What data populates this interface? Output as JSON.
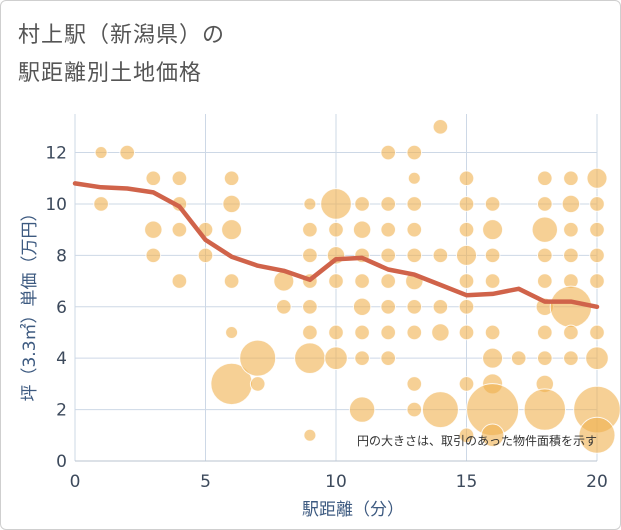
{
  "chart_data": {
    "type": "scatter",
    "title_line1": "村上駅（新潟県）の",
    "title_line2": "駅距離別土地価格",
    "xlabel": "駅距離（分）",
    "ylabel": "坪（3.3㎡）単価（万円）",
    "note": "円の大きさは、取引のあった物件面積を示す",
    "xlim": [
      0,
      20
    ],
    "ylim": [
      0,
      13.5
    ],
    "xticks": [
      0,
      5,
      10,
      15,
      20
    ],
    "yticks": [
      0,
      2,
      4,
      6,
      8,
      10,
      12
    ],
    "grid": true,
    "bubble_color": "#F0B04F",
    "line_color": "#D0634A",
    "points": [
      [
        1,
        12,
        1
      ],
      [
        1,
        10,
        2
      ],
      [
        2,
        12,
        2
      ],
      [
        3,
        11,
        2
      ],
      [
        3,
        9,
        3
      ],
      [
        3,
        8,
        2
      ],
      [
        4,
        11,
        2
      ],
      [
        4,
        10,
        2
      ],
      [
        4,
        9,
        2
      ],
      [
        4,
        7,
        2
      ],
      [
        5,
        9,
        2
      ],
      [
        5,
        8,
        2
      ],
      [
        6,
        11,
        2
      ],
      [
        6,
        10,
        3
      ],
      [
        6,
        9,
        4
      ],
      [
        6,
        7,
        2
      ],
      [
        6,
        5,
        1
      ],
      [
        6,
        3,
        12
      ],
      [
        7,
        4,
        10
      ],
      [
        7,
        3,
        2
      ],
      [
        8,
        7,
        4
      ],
      [
        8,
        6,
        2
      ],
      [
        9,
        10,
        1
      ],
      [
        9,
        9,
        2
      ],
      [
        9,
        8,
        2
      ],
      [
        9,
        7,
        2
      ],
      [
        9,
        6,
        2
      ],
      [
        9,
        5,
        2
      ],
      [
        9,
        4,
        8
      ],
      [
        9,
        1,
        1
      ],
      [
        10,
        10,
        8
      ],
      [
        10,
        9,
        2
      ],
      [
        10,
        8,
        3
      ],
      [
        10,
        7,
        2
      ],
      [
        10,
        5,
        2
      ],
      [
        10,
        4,
        5
      ],
      [
        11,
        10,
        2
      ],
      [
        11,
        9,
        3
      ],
      [
        11,
        8,
        2
      ],
      [
        11,
        7,
        2
      ],
      [
        11,
        6,
        3
      ],
      [
        11,
        5,
        2
      ],
      [
        11,
        4,
        2
      ],
      [
        11,
        2,
        6
      ],
      [
        12,
        12,
        2
      ],
      [
        12,
        10,
        2
      ],
      [
        12,
        9,
        2
      ],
      [
        12,
        8,
        2
      ],
      [
        12,
        7,
        2
      ],
      [
        12,
        6,
        2
      ],
      [
        12,
        5,
        2
      ],
      [
        12,
        4,
        2
      ],
      [
        13,
        12,
        2
      ],
      [
        13,
        11,
        1
      ],
      [
        13,
        10,
        2
      ],
      [
        13,
        9,
        2
      ],
      [
        13,
        8,
        2
      ],
      [
        13,
        7,
        3
      ],
      [
        13,
        6,
        2
      ],
      [
        13,
        5,
        2
      ],
      [
        13,
        3,
        2
      ],
      [
        13,
        2,
        2
      ],
      [
        14,
        13,
        2
      ],
      [
        14,
        8,
        2
      ],
      [
        14,
        6,
        2
      ],
      [
        14,
        5,
        3
      ],
      [
        14,
        2,
        10
      ],
      [
        15,
        11,
        2
      ],
      [
        15,
        10,
        2
      ],
      [
        15,
        9,
        2
      ],
      [
        15,
        8,
        4
      ],
      [
        15,
        7,
        2
      ],
      [
        15,
        6,
        2
      ],
      [
        15,
        5,
        2
      ],
      [
        15,
        3,
        2
      ],
      [
        15,
        1,
        2
      ],
      [
        16,
        10,
        2
      ],
      [
        16,
        9,
        4
      ],
      [
        16,
        8,
        2
      ],
      [
        16,
        7,
        2
      ],
      [
        16,
        5,
        2
      ],
      [
        16,
        4,
        4
      ],
      [
        16,
        3,
        4
      ],
      [
        16,
        2,
        16
      ],
      [
        16,
        1,
        5
      ],
      [
        17,
        4,
        2
      ],
      [
        18,
        11,
        2
      ],
      [
        18,
        10,
        2
      ],
      [
        18,
        9,
        6
      ],
      [
        18,
        8,
        2
      ],
      [
        18,
        7,
        2
      ],
      [
        18,
        6,
        3
      ],
      [
        18,
        5,
        2
      ],
      [
        18,
        4,
        2
      ],
      [
        18,
        3,
        3
      ],
      [
        18,
        2,
        12
      ],
      [
        19,
        11,
        2
      ],
      [
        19,
        10,
        3
      ],
      [
        19,
        9,
        2
      ],
      [
        19,
        8,
        2
      ],
      [
        19,
        7,
        2
      ],
      [
        19,
        6,
        12
      ],
      [
        19,
        5,
        2
      ],
      [
        19,
        4,
        2
      ],
      [
        20,
        11,
        4
      ],
      [
        20,
        10,
        2
      ],
      [
        20,
        9,
        2
      ],
      [
        20,
        8,
        2
      ],
      [
        20,
        7,
        2
      ],
      [
        20,
        5,
        2
      ],
      [
        20,
        4,
        5
      ],
      [
        20,
        2,
        14
      ],
      [
        20,
        1,
        10
      ]
    ],
    "avg_line": [
      [
        0,
        10.8
      ],
      [
        1,
        10.65
      ],
      [
        2,
        10.6
      ],
      [
        3,
        10.45
      ],
      [
        4,
        9.9
      ],
      [
        5,
        8.6
      ],
      [
        6,
        7.95
      ],
      [
        7,
        7.6
      ],
      [
        8,
        7.4
      ],
      [
        9,
        7.05
      ],
      [
        10,
        7.85
      ],
      [
        11,
        7.9
      ],
      [
        12,
        7.45
      ],
      [
        13,
        7.25
      ],
      [
        14,
        6.85
      ],
      [
        15,
        6.45
      ],
      [
        16,
        6.5
      ],
      [
        17,
        6.7
      ],
      [
        18,
        6.2
      ],
      [
        19,
        6.2
      ],
      [
        20,
        6.0
      ]
    ]
  }
}
